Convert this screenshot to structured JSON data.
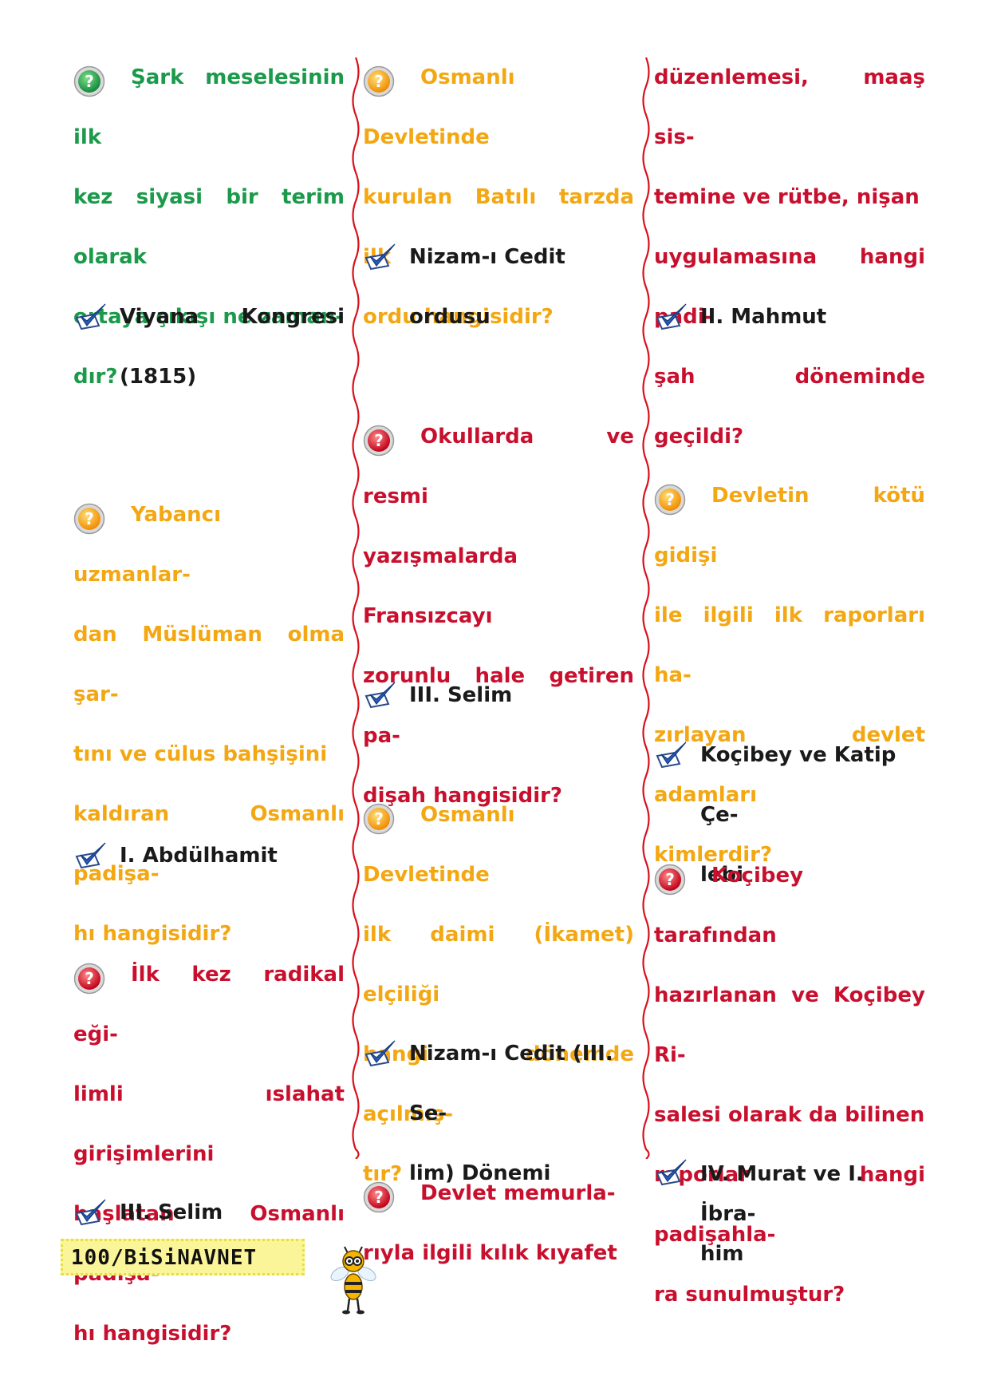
{
  "colors": {
    "green": "#1a9a4a",
    "orange": "#f3a712",
    "red": "#c8102e",
    "answer": "#1a1a1a",
    "footer_bg": "#fbf59a"
  },
  "footer": {
    "label": "100/BiSiNAVNET"
  },
  "col1": {
    "q1": {
      "lines": [
        "Şark meselesinin ilk",
        "kez siyasi bir terim olarak",
        "ortaya çıkışı ne zaman-",
        "dır?"
      ]
    },
    "a1": {
      "lines": [
        "Viyana Kongresi",
        "(1815)"
      ]
    },
    "q2": {
      "lines": [
        "Yabancı uzmanlar-",
        "dan Müslüman olma şar-",
        "tını ve cülus bahşişini",
        "kaldıran Osmanlı padişa-",
        "hı hangisidir?"
      ]
    },
    "a2": {
      "lines": [
        "I. Abdülhamit"
      ]
    },
    "q3": {
      "lines": [
        "İlk kez radikal eği-",
        "limli ıslahat girişimlerini",
        "başlatan Osmanlı padişa-",
        "hı hangisidir?"
      ]
    },
    "a3": {
      "lines": [
        "III. Selim"
      ]
    }
  },
  "col2": {
    "q1": {
      "lines": [
        "Osmanlı Devletinde",
        "kurulan Batılı tarzda ilk",
        "ordu hangisidir?"
      ]
    },
    "a1": {
      "lines": [
        "Nizam-ı Cedit ordusu"
      ]
    },
    "q2": {
      "lines": [
        "Okullarda ve resmi",
        "yazışmalarda Fransızcayı",
        "zorunlu hale getiren pa-",
        "dişah hangisidir?"
      ]
    },
    "a2": {
      "lines": [
        "III. Selim"
      ]
    },
    "q3": {
      "lines": [
        "Osmanlı Devletinde",
        "ilk daimi (İkamet) elçiliği",
        "hangi dönemde açılmış-",
        "tır?"
      ]
    },
    "a3": {
      "lines": [
        "Nizam-ı Cedit (III. Se-",
        "lim) Dönemi"
      ]
    },
    "q4": {
      "lines": [
        "Devlet memurla-",
        "rıyla ilgili kılık kıyafet"
      ]
    }
  },
  "col3": {
    "q1cont": {
      "lines": [
        "düzenlemesi, maaş sis-",
        "temine ve rütbe, nişan",
        "uygulamasına hangi padi-",
        "şah döneminde geçildi?"
      ]
    },
    "a1": {
      "lines": [
        "II. Mahmut"
      ]
    },
    "q2": {
      "lines": [
        "Devletin kötü gidişi",
        "ile ilgili ilk raporları ha-",
        "zırlayan devlet adamları",
        "kimlerdir?"
      ]
    },
    "a2": {
      "lines": [
        "Koçibey ve Katip Çe-",
        "lebi"
      ]
    },
    "q3": {
      "lines": [
        "Koçibey tarafından",
        "hazırlanan ve Koçibey Ri-",
        "salesi olarak da bilinen",
        "raporlar hangi padişahla-",
        "ra sunulmuştur?"
      ]
    },
    "a3": {
      "lines": [
        "IV. Murat ve I. İbra-",
        "him"
      ]
    }
  }
}
